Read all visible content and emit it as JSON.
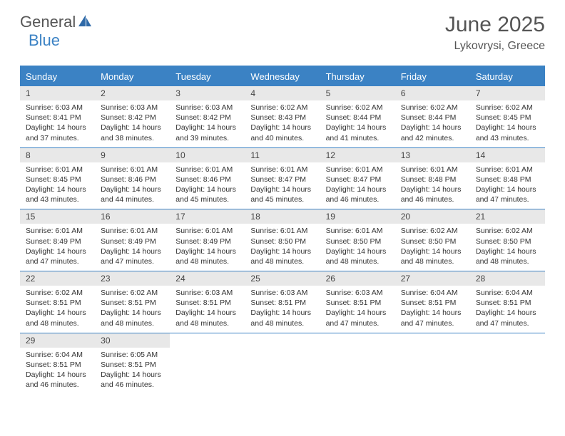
{
  "logo": {
    "general": "General",
    "blue": "Blue"
  },
  "title": "June 2025",
  "location": "Lykovrysi, Greece",
  "colors": {
    "accent": "#3b82c4",
    "daynum_bg": "#e8e8e8",
    "text": "#333333"
  },
  "day_headers": [
    "Sunday",
    "Monday",
    "Tuesday",
    "Wednesday",
    "Thursday",
    "Friday",
    "Saturday"
  ],
  "weeks": [
    [
      {
        "n": "1",
        "sr": "Sunrise: 6:03 AM",
        "ss": "Sunset: 8:41 PM",
        "dl": "Daylight: 14 hours and 37 minutes."
      },
      {
        "n": "2",
        "sr": "Sunrise: 6:03 AM",
        "ss": "Sunset: 8:42 PM",
        "dl": "Daylight: 14 hours and 38 minutes."
      },
      {
        "n": "3",
        "sr": "Sunrise: 6:03 AM",
        "ss": "Sunset: 8:42 PM",
        "dl": "Daylight: 14 hours and 39 minutes."
      },
      {
        "n": "4",
        "sr": "Sunrise: 6:02 AM",
        "ss": "Sunset: 8:43 PM",
        "dl": "Daylight: 14 hours and 40 minutes."
      },
      {
        "n": "5",
        "sr": "Sunrise: 6:02 AM",
        "ss": "Sunset: 8:44 PM",
        "dl": "Daylight: 14 hours and 41 minutes."
      },
      {
        "n": "6",
        "sr": "Sunrise: 6:02 AM",
        "ss": "Sunset: 8:44 PM",
        "dl": "Daylight: 14 hours and 42 minutes."
      },
      {
        "n": "7",
        "sr": "Sunrise: 6:02 AM",
        "ss": "Sunset: 8:45 PM",
        "dl": "Daylight: 14 hours and 43 minutes."
      }
    ],
    [
      {
        "n": "8",
        "sr": "Sunrise: 6:01 AM",
        "ss": "Sunset: 8:45 PM",
        "dl": "Daylight: 14 hours and 43 minutes."
      },
      {
        "n": "9",
        "sr": "Sunrise: 6:01 AM",
        "ss": "Sunset: 8:46 PM",
        "dl": "Daylight: 14 hours and 44 minutes."
      },
      {
        "n": "10",
        "sr": "Sunrise: 6:01 AM",
        "ss": "Sunset: 8:46 PM",
        "dl": "Daylight: 14 hours and 45 minutes."
      },
      {
        "n": "11",
        "sr": "Sunrise: 6:01 AM",
        "ss": "Sunset: 8:47 PM",
        "dl": "Daylight: 14 hours and 45 minutes."
      },
      {
        "n": "12",
        "sr": "Sunrise: 6:01 AM",
        "ss": "Sunset: 8:47 PM",
        "dl": "Daylight: 14 hours and 46 minutes."
      },
      {
        "n": "13",
        "sr": "Sunrise: 6:01 AM",
        "ss": "Sunset: 8:48 PM",
        "dl": "Daylight: 14 hours and 46 minutes."
      },
      {
        "n": "14",
        "sr": "Sunrise: 6:01 AM",
        "ss": "Sunset: 8:48 PM",
        "dl": "Daylight: 14 hours and 47 minutes."
      }
    ],
    [
      {
        "n": "15",
        "sr": "Sunrise: 6:01 AM",
        "ss": "Sunset: 8:49 PM",
        "dl": "Daylight: 14 hours and 47 minutes."
      },
      {
        "n": "16",
        "sr": "Sunrise: 6:01 AM",
        "ss": "Sunset: 8:49 PM",
        "dl": "Daylight: 14 hours and 47 minutes."
      },
      {
        "n": "17",
        "sr": "Sunrise: 6:01 AM",
        "ss": "Sunset: 8:49 PM",
        "dl": "Daylight: 14 hours and 48 minutes."
      },
      {
        "n": "18",
        "sr": "Sunrise: 6:01 AM",
        "ss": "Sunset: 8:50 PM",
        "dl": "Daylight: 14 hours and 48 minutes."
      },
      {
        "n": "19",
        "sr": "Sunrise: 6:01 AM",
        "ss": "Sunset: 8:50 PM",
        "dl": "Daylight: 14 hours and 48 minutes."
      },
      {
        "n": "20",
        "sr": "Sunrise: 6:02 AM",
        "ss": "Sunset: 8:50 PM",
        "dl": "Daylight: 14 hours and 48 minutes."
      },
      {
        "n": "21",
        "sr": "Sunrise: 6:02 AM",
        "ss": "Sunset: 8:50 PM",
        "dl": "Daylight: 14 hours and 48 minutes."
      }
    ],
    [
      {
        "n": "22",
        "sr": "Sunrise: 6:02 AM",
        "ss": "Sunset: 8:51 PM",
        "dl": "Daylight: 14 hours and 48 minutes."
      },
      {
        "n": "23",
        "sr": "Sunrise: 6:02 AM",
        "ss": "Sunset: 8:51 PM",
        "dl": "Daylight: 14 hours and 48 minutes."
      },
      {
        "n": "24",
        "sr": "Sunrise: 6:03 AM",
        "ss": "Sunset: 8:51 PM",
        "dl": "Daylight: 14 hours and 48 minutes."
      },
      {
        "n": "25",
        "sr": "Sunrise: 6:03 AM",
        "ss": "Sunset: 8:51 PM",
        "dl": "Daylight: 14 hours and 48 minutes."
      },
      {
        "n": "26",
        "sr": "Sunrise: 6:03 AM",
        "ss": "Sunset: 8:51 PM",
        "dl": "Daylight: 14 hours and 47 minutes."
      },
      {
        "n": "27",
        "sr": "Sunrise: 6:04 AM",
        "ss": "Sunset: 8:51 PM",
        "dl": "Daylight: 14 hours and 47 minutes."
      },
      {
        "n": "28",
        "sr": "Sunrise: 6:04 AM",
        "ss": "Sunset: 8:51 PM",
        "dl": "Daylight: 14 hours and 47 minutes."
      }
    ],
    [
      {
        "n": "29",
        "sr": "Sunrise: 6:04 AM",
        "ss": "Sunset: 8:51 PM",
        "dl": "Daylight: 14 hours and 46 minutes."
      },
      {
        "n": "30",
        "sr": "Sunrise: 6:05 AM",
        "ss": "Sunset: 8:51 PM",
        "dl": "Daylight: 14 hours and 46 minutes."
      },
      null,
      null,
      null,
      null,
      null
    ]
  ]
}
